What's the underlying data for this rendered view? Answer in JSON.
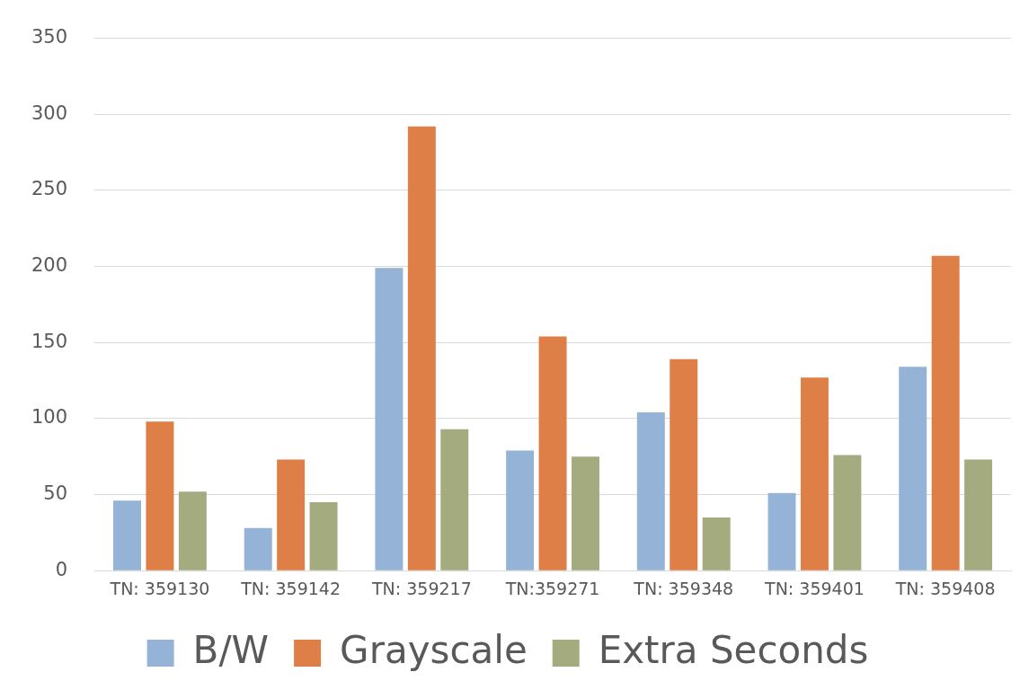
{
  "chart_data": {
    "type": "bar",
    "categories": [
      "TN: 359130",
      "TN: 359142",
      "TN: 359217",
      "TN:359271",
      "TN: 359348",
      "TN: 359401",
      "TN: 359408"
    ],
    "series": [
      {
        "name": "B/W",
        "color": "#95b3d7",
        "values": [
          46,
          28,
          199,
          79,
          104,
          51,
          134
        ]
      },
      {
        "name": "Grayscale",
        "color": "#dd7f47",
        "values": [
          98,
          73,
          292,
          154,
          139,
          127,
          207
        ]
      },
      {
        "name": "Extra Seconds",
        "color": "#a3ab7f",
        "values": [
          52,
          45,
          93,
          75,
          35,
          76,
          73
        ]
      }
    ],
    "ylim": [
      0,
      350
    ],
    "yticks": [
      0,
      50,
      100,
      150,
      200,
      250,
      300,
      350
    ],
    "grid": "y",
    "legend": "bottom"
  }
}
